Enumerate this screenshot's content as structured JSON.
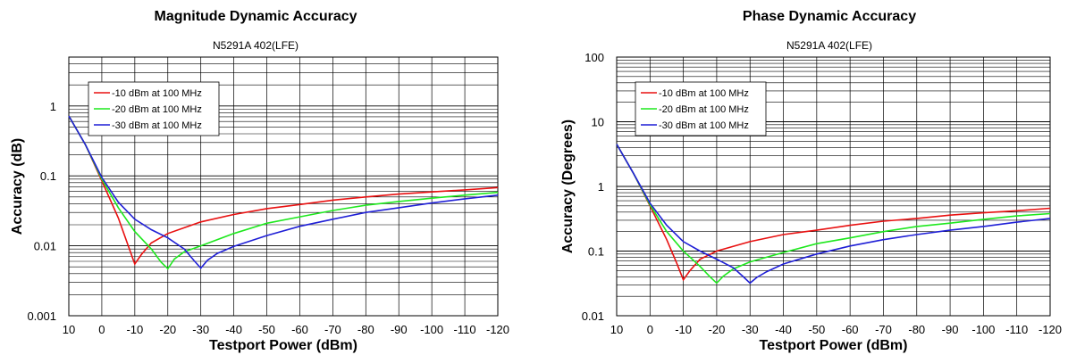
{
  "chart_data": [
    {
      "type": "line",
      "title": "Magnitude Dynamic Accuracy",
      "subtitle": "N5291A 402(LFE)",
      "xlabel": "Testport Power (dBm)",
      "ylabel": "Accuracy (dB)",
      "xlim": [
        10,
        -120
      ],
      "ylim": [
        0.001,
        5
      ],
      "yscale": "log",
      "grid": true,
      "legend_position": "top-left",
      "x_ticks": [
        10,
        0,
        -10,
        -20,
        -30,
        -40,
        -50,
        -60,
        -70,
        -80,
        -90,
        -100,
        -110,
        -120
      ],
      "y_ticks": [
        0.001,
        0.01,
        0.1,
        1
      ],
      "y_tick_labels": [
        "0.001",
        "0.01",
        "0.1",
        "1"
      ],
      "series": [
        {
          "name": "-10 dBm at 100 MHz",
          "color": "#e81010",
          "x": [
            10,
            5,
            0,
            -5,
            -8,
            -10,
            -12,
            -15,
            -20,
            -30,
            -40,
            -50,
            -60,
            -70,
            -80,
            -90,
            -100,
            -110,
            -120
          ],
          "y": [
            0.72,
            0.28,
            0.085,
            0.025,
            0.01,
            0.0055,
            0.0075,
            0.011,
            0.015,
            0.022,
            0.028,
            0.034,
            0.039,
            0.045,
            0.05,
            0.055,
            0.059,
            0.063,
            0.068
          ]
        },
        {
          "name": "-20 dBm at 100 MHz",
          "color": "#1ee81e",
          "x": [
            10,
            5,
            0,
            -5,
            -10,
            -15,
            -18,
            -20,
            -22,
            -25,
            -30,
            -40,
            -50,
            -60,
            -70,
            -80,
            -90,
            -100,
            -110,
            -120
          ],
          "y": [
            0.72,
            0.28,
            0.09,
            0.035,
            0.016,
            0.009,
            0.0058,
            0.0047,
            0.0065,
            0.0082,
            0.01,
            0.015,
            0.021,
            0.026,
            0.032,
            0.038,
            0.043,
            0.048,
            0.053,
            0.058
          ]
        },
        {
          "name": "-30 dBm at 100 MHz",
          "color": "#1f1fd6",
          "x": [
            10,
            5,
            0,
            -5,
            -10,
            -15,
            -20,
            -25,
            -28,
            -30,
            -32,
            -35,
            -40,
            -50,
            -60,
            -70,
            -80,
            -90,
            -100,
            -110,
            -120
          ],
          "y": [
            0.72,
            0.28,
            0.095,
            0.042,
            0.024,
            0.017,
            0.013,
            0.009,
            0.0061,
            0.0048,
            0.0062,
            0.0078,
            0.0098,
            0.014,
            0.019,
            0.024,
            0.03,
            0.035,
            0.041,
            0.047,
            0.053
          ]
        }
      ]
    },
    {
      "type": "line",
      "title": "Phase Dynamic Accuracy",
      "subtitle": "N5291A 402(LFE)",
      "xlabel": "Testport Power (dBm)",
      "ylabel": "Accuracy (Degrees)",
      "xlim": [
        10,
        -120
      ],
      "ylim": [
        0.01,
        100
      ],
      "yscale": "log",
      "grid": true,
      "legend_position": "top-left",
      "x_ticks": [
        10,
        0,
        -10,
        -20,
        -30,
        -40,
        -50,
        -60,
        -70,
        -80,
        -90,
        -100,
        -110,
        -120
      ],
      "y_ticks": [
        0.01,
        0.1,
        1,
        10,
        100
      ],
      "y_tick_labels": [
        "0.01",
        "0.1",
        "1",
        "10",
        "100"
      ],
      "series": [
        {
          "name": "-10 dBm at 100 MHz",
          "color": "#e81010",
          "x": [
            10,
            5,
            0,
            -5,
            -8,
            -10,
            -12,
            -15,
            -20,
            -30,
            -40,
            -50,
            -60,
            -70,
            -80,
            -90,
            -100,
            -110,
            -120
          ],
          "y": [
            4.5,
            1.6,
            0.5,
            0.15,
            0.065,
            0.036,
            0.05,
            0.075,
            0.1,
            0.14,
            0.18,
            0.21,
            0.25,
            0.29,
            0.32,
            0.36,
            0.39,
            0.42,
            0.46
          ]
        },
        {
          "name": "-20 dBm at 100 MHz",
          "color": "#1ee81e",
          "x": [
            10,
            5,
            0,
            -5,
            -10,
            -15,
            -18,
            -20,
            -22,
            -25,
            -30,
            -40,
            -50,
            -60,
            -70,
            -80,
            -90,
            -100,
            -110,
            -120
          ],
          "y": [
            4.5,
            1.6,
            0.52,
            0.2,
            0.1,
            0.058,
            0.04,
            0.032,
            0.041,
            0.053,
            0.068,
            0.095,
            0.13,
            0.16,
            0.2,
            0.24,
            0.27,
            0.31,
            0.35,
            0.38
          ]
        },
        {
          "name": "-30 dBm at 100 MHz",
          "color": "#1f1fd6",
          "x": [
            10,
            5,
            0,
            -5,
            -10,
            -15,
            -20,
            -25,
            -28,
            -30,
            -32,
            -35,
            -40,
            -50,
            -60,
            -70,
            -80,
            -90,
            -100,
            -110,
            -120
          ],
          "y": [
            4.5,
            1.6,
            0.55,
            0.25,
            0.14,
            0.1,
            0.075,
            0.055,
            0.04,
            0.032,
            0.039,
            0.048,
            0.063,
            0.09,
            0.12,
            0.15,
            0.18,
            0.21,
            0.24,
            0.28,
            0.32
          ]
        }
      ]
    }
  ]
}
